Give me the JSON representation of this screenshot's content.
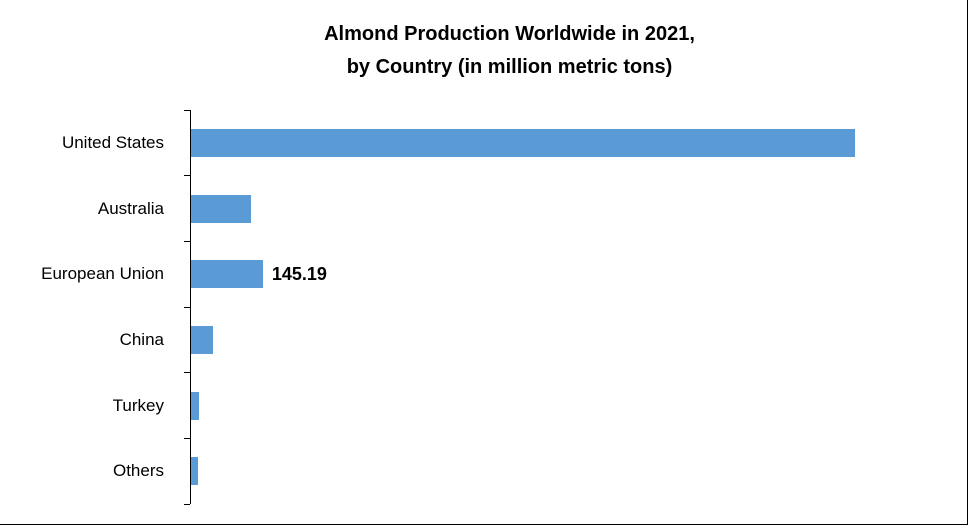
{
  "chart_data": {
    "type": "bar",
    "orientation": "horizontal",
    "title": "Almond Production Worldwide in 2021, by Country (in million metric tons)",
    "title_line1": "Almond Production Worldwide in 2021,",
    "title_line2": "by Country (in million metric tons)",
    "categories": [
      "United States",
      "Australia",
      "European Union",
      "China",
      "Turkey",
      "Others"
    ],
    "values": [
      1325,
      122,
      145.19,
      46,
      18,
      16
    ],
    "data_labels": [
      "",
      "",
      "145.19",
      "",
      "",
      ""
    ],
    "bar_color": "#5b9bd5",
    "axis_color": "#000000",
    "text_color": "#000000",
    "xlim": [
      0,
      1550
    ],
    "grid": false,
    "legend": false,
    "x_axis_labels_visible": false
  }
}
